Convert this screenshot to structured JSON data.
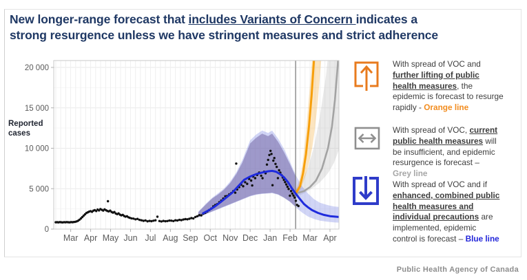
{
  "title": {
    "lines": [
      [
        {
          "t": "New longer-range forecast that "
        },
        {
          "t": "includes Variants of Concern ",
          "u": 1
        },
        {
          "t": "indicates a"
        }
      ],
      [
        {
          "t": "strong resurgence unless we have stringent measures and strict adherence"
        }
      ]
    ]
  },
  "attribution": "Public Health Agency of Canada",
  "annotations": [
    {
      "icon": "up-arrow-icon",
      "icon_color": "#E87B1E",
      "lines": [
        [
          {
            "t": "With spread of VOC and"
          }
        ],
        [
          {
            "t": "further lifting of public",
            "b": 1,
            "u": 1
          }
        ],
        [
          {
            "t": "health measures",
            "b": 1,
            "u": 1
          },
          {
            "t": ", the"
          }
        ],
        [
          {
            "t": "epidemic is forecast to resurge"
          }
        ],
        [
          {
            "t": "rapidly - "
          },
          {
            "t": "Orange line",
            "b": 1,
            "c": "#F28C1E"
          }
        ]
      ]
    },
    {
      "icon": "left-right-arrow-icon",
      "icon_color": "#8f8f8f",
      "lines": [
        [
          {
            "t": "With spread of VOC, "
          },
          {
            "t": "current",
            "b": 1,
            "u": 1
          }
        ],
        [
          {
            "t": "public health measures",
            "b": 1,
            "u": 1
          },
          {
            "t": " will"
          }
        ],
        [
          {
            "t": "be insufficient, and epidemic"
          }
        ],
        [
          {
            "t": "resurgence is forecast –"
          }
        ],
        [
          {
            "t": "Grey line",
            "b": 1,
            "c": "#a6a6a6"
          }
        ]
      ]
    },
    {
      "icon": "down-arrow-icon",
      "icon_color": "#2F3CC9",
      "lines": [
        [
          {
            "t": "With spread of VOC and if"
          }
        ],
        [
          {
            "t": "enhanced, combined public",
            "b": 1,
            "u": 1
          }
        ],
        [
          {
            "t": "health measures and",
            "b": 1,
            "u": 1
          }
        ],
        [
          {
            "t": "individual precautions",
            "b": 1,
            "u": 1
          },
          {
            "t": " are"
          }
        ],
        [
          {
            "t": "implemented, epidemic"
          }
        ],
        [
          {
            "t": "control is forecast – "
          },
          {
            "t": "Blue line",
            "b": 1,
            "c": "#2326d9"
          }
        ]
      ]
    }
  ],
  "chart_data": {
    "type": "scatter+line+area",
    "title": "",
    "xlabel": "",
    "ylabel": "Reported\ncases",
    "x_tick_labels": [
      "Mar",
      "Apr",
      "May",
      "Jun",
      "Jul",
      "Aug",
      "Sep",
      "Oct",
      "Nov",
      "Dec",
      "Jan",
      "Feb",
      "Mar",
      "Apr"
    ],
    "x_note": "Mar 2020 through Apr 2021; forecast begins at vertical line (mid-February 2021)",
    "y_ticks": [
      {
        "value": 0,
        "label": "0"
      },
      {
        "value": 5000,
        "label": "5 000"
      },
      {
        "value": 10000,
        "label": "10 000"
      },
      {
        "value": 15000,
        "label": "15 000"
      },
      {
        "value": 20000,
        "label": "20 000"
      }
    ],
    "ylim": [
      0,
      20850
    ],
    "grid": "light weekly vertical + faint horizontal",
    "today_x": 11.28,
    "legend_position": "right-side text annotations",
    "series": {
      "reported_cases_points": [
        [
          -0.75,
          840
        ],
        [
          -0.68,
          855
        ],
        [
          -0.61,
          830
        ],
        [
          -0.54,
          865
        ],
        [
          -0.47,
          845
        ],
        [
          -0.4,
          825
        ],
        [
          -0.33,
          860
        ],
        [
          -0.26,
          840
        ],
        [
          -0.19,
          870
        ],
        [
          -0.12,
          845
        ],
        [
          -0.05,
          830
        ],
        [
          0.02,
          865
        ],
        [
          0.09,
          850
        ],
        [
          0.16,
          880
        ],
        [
          0.23,
          905
        ],
        [
          0.3,
          950
        ],
        [
          0.37,
          1030
        ],
        [
          0.44,
          1160
        ],
        [
          0.51,
          1310
        ],
        [
          0.58,
          1480
        ],
        [
          0.65,
          1660
        ],
        [
          0.72,
          1830
        ],
        [
          0.79,
          1990
        ],
        [
          0.86,
          2080
        ],
        [
          0.93,
          2160
        ],
        [
          1.0,
          2220
        ],
        [
          1.07,
          2140
        ],
        [
          1.14,
          2280
        ],
        [
          1.21,
          2350
        ],
        [
          1.28,
          2230
        ],
        [
          1.35,
          2420
        ],
        [
          1.42,
          2310
        ],
        [
          1.49,
          2480
        ],
        [
          1.56,
          2380
        ],
        [
          1.63,
          2290
        ],
        [
          1.7,
          2440
        ],
        [
          1.77,
          2330
        ],
        [
          1.84,
          2240
        ],
        [
          1.87,
          3450
        ],
        [
          1.91,
          2190
        ],
        [
          1.98,
          2280
        ],
        [
          2.05,
          2120
        ],
        [
          2.12,
          2030
        ],
        [
          2.19,
          2110
        ],
        [
          2.26,
          1930
        ],
        [
          2.33,
          1850
        ],
        [
          2.4,
          1940
        ],
        [
          2.47,
          1790
        ],
        [
          2.54,
          1700
        ],
        [
          2.61,
          1760
        ],
        [
          2.68,
          1620
        ],
        [
          2.75,
          1540
        ],
        [
          2.82,
          1590
        ],
        [
          2.89,
          1460
        ],
        [
          2.96,
          1400
        ],
        [
          3.05,
          1330
        ],
        [
          3.15,
          1290
        ],
        [
          3.25,
          1210
        ],
        [
          3.35,
          1260
        ],
        [
          3.45,
          1140
        ],
        [
          3.55,
          1090
        ],
        [
          3.65,
          1020
        ],
        [
          3.75,
          1070
        ],
        [
          3.85,
          960
        ],
        [
          3.95,
          1010
        ],
        [
          4.05,
          975
        ],
        [
          4.15,
          1040
        ],
        [
          4.25,
          1090
        ],
        [
          4.35,
          1530
        ],
        [
          4.45,
          1000
        ],
        [
          4.55,
          945
        ],
        [
          4.65,
          1015
        ],
        [
          4.75,
          970
        ],
        [
          4.85,
          1000
        ],
        [
          4.95,
          1055
        ],
        [
          5.05,
          1040
        ],
        [
          5.15,
          1000
        ],
        [
          5.25,
          1090
        ],
        [
          5.35,
          1060
        ],
        [
          5.45,
          1140
        ],
        [
          5.55,
          1110
        ],
        [
          5.65,
          1180
        ],
        [
          5.75,
          1230
        ],
        [
          5.85,
          1210
        ],
        [
          5.95,
          1280
        ],
        [
          6.05,
          1360
        ],
        [
          6.15,
          1320
        ],
        [
          6.25,
          1500
        ],
        [
          6.35,
          1590
        ],
        [
          6.45,
          1730
        ],
        [
          6.55,
          1690
        ],
        [
          6.65,
          1900
        ],
        [
          6.75,
          2010
        ],
        [
          6.85,
          2180
        ],
        [
          6.95,
          2370
        ],
        [
          7.05,
          2540
        ],
        [
          7.15,
          2820
        ],
        [
          7.25,
          2980
        ],
        [
          7.35,
          3090
        ],
        [
          7.45,
          3330
        ],
        [
          7.55,
          3520
        ],
        [
          7.65,
          3780
        ],
        [
          7.75,
          4060
        ],
        [
          7.85,
          4100
        ],
        [
          7.95,
          4300
        ],
        [
          8.05,
          4450
        ],
        [
          8.15,
          4700
        ],
        [
          8.25,
          4500
        ],
        [
          8.3,
          8100
        ],
        [
          8.35,
          4900
        ],
        [
          8.45,
          5200
        ],
        [
          8.55,
          5500
        ],
        [
          8.65,
          5300
        ],
        [
          8.75,
          5800
        ],
        [
          8.85,
          5600
        ],
        [
          8.95,
          6200
        ],
        [
          9.05,
          6000
        ],
        [
          9.1,
          5400
        ],
        [
          9.15,
          6500
        ],
        [
          9.25,
          6300
        ],
        [
          9.35,
          6700
        ],
        [
          9.45,
          7000
        ],
        [
          9.55,
          6600
        ],
        [
          9.62,
          6300
        ],
        [
          9.7,
          7100
        ],
        [
          9.77,
          6900
        ],
        [
          9.84,
          7980
        ],
        [
          9.9,
          8560
        ],
        [
          9.96,
          9170
        ],
        [
          10.02,
          9680
        ],
        [
          10.07,
          9290
        ],
        [
          10.12,
          5430
        ],
        [
          10.16,
          8470
        ],
        [
          10.21,
          8790
        ],
        [
          10.27,
          8060
        ],
        [
          10.33,
          7690
        ],
        [
          10.39,
          6310
        ],
        [
          10.45,
          7280
        ],
        [
          10.51,
          6980
        ],
        [
          10.57,
          6690
        ],
        [
          10.63,
          6380
        ],
        [
          10.69,
          6090
        ],
        [
          10.75,
          5810
        ],
        [
          10.81,
          5520
        ],
        [
          10.87,
          5230
        ],
        [
          10.93,
          4960
        ],
        [
          10.99,
          4130
        ],
        [
          11.05,
          4700
        ],
        [
          11.11,
          4400
        ],
        [
          11.17,
          4150
        ],
        [
          11.23,
          3900
        ],
        [
          11.29,
          3500
        ],
        [
          11.35,
          3000
        ],
        [
          11.42,
          2850
        ]
      ],
      "blue_line": [
        [
          6.6,
          1900
        ],
        [
          6.9,
          2300
        ],
        [
          7.2,
          2750
        ],
        [
          7.5,
          3300
        ],
        [
          7.8,
          3900
        ],
        [
          8.1,
          4500
        ],
        [
          8.4,
          5300
        ],
        [
          8.7,
          6100
        ],
        [
          9.0,
          6500
        ],
        [
          9.3,
          6800
        ],
        [
          9.6,
          7000
        ],
        [
          9.9,
          7150
        ],
        [
          10.1,
          7200
        ],
        [
          10.3,
          7100
        ],
        [
          10.5,
          6800
        ],
        [
          10.7,
          6400
        ],
        [
          10.9,
          5800
        ],
        [
          11.1,
          5000
        ],
        [
          11.28,
          4400
        ],
        [
          11.5,
          3700
        ],
        [
          11.7,
          3100
        ],
        [
          11.9,
          2700
        ],
        [
          12.1,
          2350
        ],
        [
          12.4,
          2000
        ],
        [
          12.7,
          1750
        ],
        [
          13.0,
          1600
        ],
        [
          13.45,
          1500
        ]
      ],
      "orange_line": [
        [
          11.28,
          4400
        ],
        [
          11.5,
          5300
        ],
        [
          11.65,
          6900
        ],
        [
          11.8,
          9300
        ],
        [
          11.95,
          12800
        ],
        [
          12.08,
          16500
        ],
        [
          12.2,
          21000
        ],
        [
          12.26,
          22500
        ]
      ],
      "grey_line": [
        [
          11.28,
          4400
        ],
        [
          11.7,
          4700
        ],
        [
          12.0,
          5200
        ],
        [
          12.3,
          6000
        ],
        [
          12.6,
          7500
        ],
        [
          12.9,
          10000
        ],
        [
          13.1,
          12700
        ],
        [
          13.25,
          16000
        ],
        [
          13.38,
          20000
        ],
        [
          13.45,
          22500
        ]
      ],
      "history_band": [
        [
          6.4,
          1500,
          2100
        ],
        [
          6.8,
          1900,
          3100
        ],
        [
          7.1,
          2200,
          3800
        ],
        [
          7.4,
          2500,
          4300
        ],
        [
          7.7,
          2800,
          4900
        ],
        [
          8.0,
          3100,
          5700
        ],
        [
          8.3,
          3400,
          6800
        ],
        [
          8.6,
          3700,
          8200
        ],
        [
          9.0,
          4100,
          10600
        ],
        [
          9.3,
          4300,
          11300
        ],
        [
          9.6,
          4400,
          11800
        ],
        [
          9.9,
          4450,
          11500
        ],
        [
          10.1,
          4500,
          11800
        ],
        [
          10.4,
          4300,
          10800
        ],
        [
          10.7,
          3900,
          9500
        ],
        [
          11.0,
          3400,
          8000
        ],
        [
          11.28,
          2750,
          6500
        ]
      ],
      "blue_band": [
        [
          6.4,
          1450,
          2150
        ],
        [
          6.8,
          1850,
          3200
        ],
        [
          7.1,
          2150,
          3900
        ],
        [
          7.4,
          2450,
          4450
        ],
        [
          7.7,
          2750,
          5050
        ],
        [
          8.0,
          3050,
          5900
        ],
        [
          8.3,
          3350,
          7000
        ],
        [
          8.6,
          3650,
          8500
        ],
        [
          9.0,
          4050,
          11000
        ],
        [
          9.3,
          4250,
          11700
        ],
        [
          9.6,
          4350,
          12200
        ],
        [
          9.9,
          4400,
          11900
        ],
        [
          10.1,
          4450,
          12200
        ],
        [
          10.4,
          4250,
          11200
        ],
        [
          10.7,
          3850,
          9900
        ],
        [
          11.0,
          3350,
          8300
        ],
        [
          11.28,
          2700,
          6700
        ],
        [
          11.6,
          2050,
          5300
        ],
        [
          11.9,
          1550,
          4400
        ],
        [
          12.2,
          1250,
          3700
        ],
        [
          12.5,
          1050,
          3250
        ],
        [
          12.9,
          900,
          2950
        ],
        [
          13.2,
          830,
          2800
        ],
        [
          13.45,
          800,
          2750
        ]
      ],
      "orange_band": [
        [
          11.28,
          4100,
          4800
        ],
        [
          11.5,
          4800,
          6300
        ],
        [
          11.65,
          5700,
          8600
        ],
        [
          11.8,
          6800,
          12000
        ],
        [
          11.95,
          8200,
          16500
        ],
        [
          12.1,
          9900,
          21000
        ],
        [
          12.25,
          12500,
          22500
        ],
        [
          12.4,
          16000,
          22500
        ],
        [
          12.55,
          20500,
          22500
        ],
        [
          12.62,
          22500,
          22500
        ]
      ],
      "grey_band": [
        [
          11.28,
          4000,
          4800
        ],
        [
          11.6,
          4300,
          6000
        ],
        [
          11.9,
          4700,
          7600
        ],
        [
          12.2,
          5200,
          10200
        ],
        [
          12.5,
          5800,
          14000
        ],
        [
          12.8,
          6600,
          19000
        ],
        [
          12.95,
          7100,
          22500
        ],
        [
          13.2,
          8200,
          22500
        ],
        [
          13.45,
          9800,
          22500
        ]
      ]
    },
    "colors": {
      "dots": "#111111",
      "blue_line": "#1f2bdd",
      "orange_line": "#f79f0a",
      "grey_line": "#a3a3a3",
      "history_band": "rgba(108,94,158,0.50)",
      "blue_band": "rgba(104,116,224,0.30)",
      "orange_band": "rgba(246,173,60,0.32)",
      "grey_band": "rgba(175,175,175,0.28)",
      "today_line": "#7a7a7a",
      "grid_v": "#efefef",
      "grid_h_major": "#eaeaea",
      "grid_h_minor": "#f6f6f6",
      "axis_border": "#c9c9c9",
      "tick": "#b0b0b0",
      "tick_label": "#5a5a5a"
    }
  }
}
